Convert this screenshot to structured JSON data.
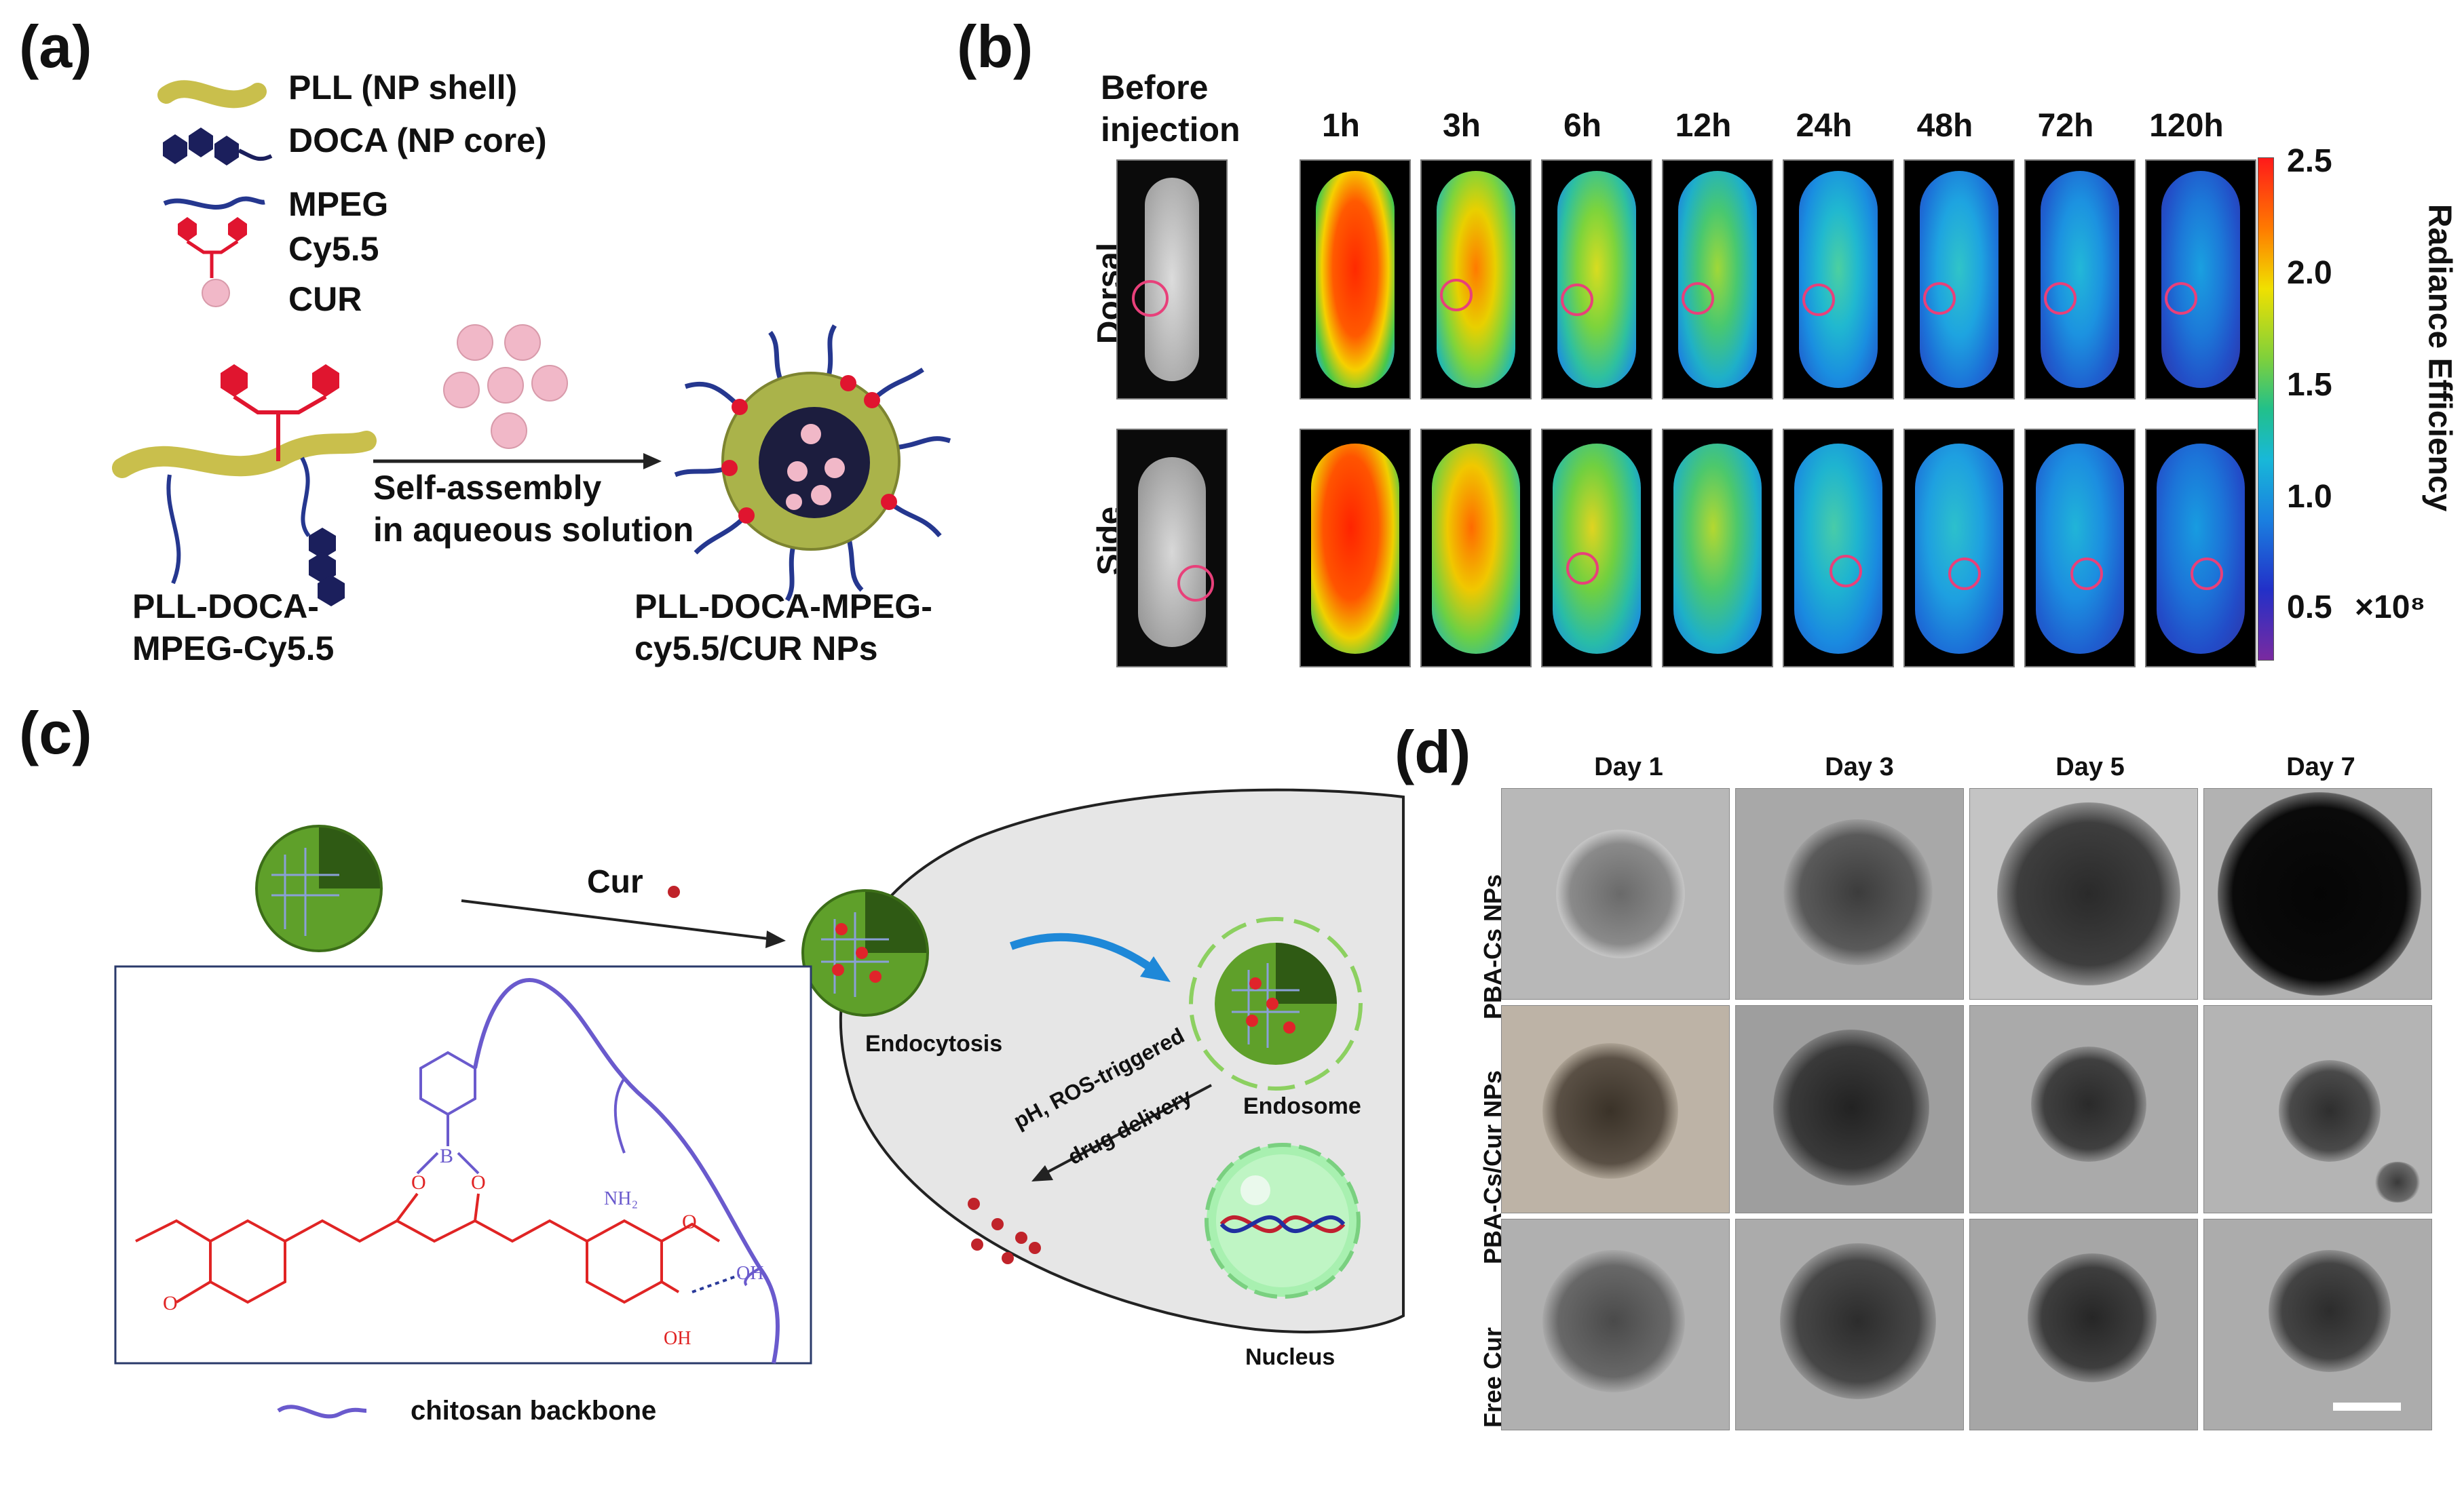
{
  "panels": {
    "a": "(a)",
    "b": "(b)",
    "c": "(c)",
    "d": "(d)"
  },
  "panel_a": {
    "legend": [
      "PLL (NP shell)",
      "DOCA (NP core)",
      "MPEG",
      "Cy5.5",
      "CUR"
    ],
    "arrow_label": [
      "Self-assembly",
      "in aqueous solution"
    ],
    "left_label": [
      "PLL-DOCA-",
      "MPEG-Cy5.5"
    ],
    "right_label": [
      "PLL-DOCA-MPEG-",
      "cy5.5/CUR NPs"
    ]
  },
  "panel_b": {
    "before_label": [
      "Before",
      "injection"
    ],
    "times": [
      "1h",
      "3h",
      "6h",
      "12h",
      "24h",
      "48h",
      "72h",
      "120h"
    ],
    "rows": [
      "Dorsal",
      "Side"
    ],
    "colorbar_ticks": [
      "2.5",
      "2.0",
      "1.5",
      "1.0",
      "0.5"
    ],
    "colorbar_title": "Radiance Efficiency",
    "colorbar_unit": "×10⁸"
  },
  "panel_c": {
    "cur_label": "Cur",
    "endocytosis": "Endocytosis",
    "endosome": "Endosome",
    "delivery": [
      "pH, ROS-triggered",
      "drug delivery"
    ],
    "nucleus": "Nucleus",
    "nh2": "NH₂",
    "oh_top": "OH",
    "oh_bottom": "OH",
    "boron": "B",
    "o1": "O",
    "o2": "O",
    "o3": "O",
    "o4": "O",
    "backbone_label": "chitosan backbone"
  },
  "panel_d": {
    "days": [
      "Day 1",
      "Day 3",
      "Day 5",
      "Day 7"
    ],
    "rows": [
      "PBA-Cs NPs",
      "PBA-Cs/Cur NPs",
      "Free Cur"
    ]
  },
  "colors": {
    "pll": "#c9bf4c",
    "doca": "#1b1f5c",
    "mpeg": "#25378f",
    "cy55": "#e0152f",
    "cur": "#f1b8c8",
    "nanoparticle": "#6aa82a",
    "chem_blue": "#6a5acd",
    "chem_red": "#e02424",
    "cell": "#e6e6e6"
  }
}
